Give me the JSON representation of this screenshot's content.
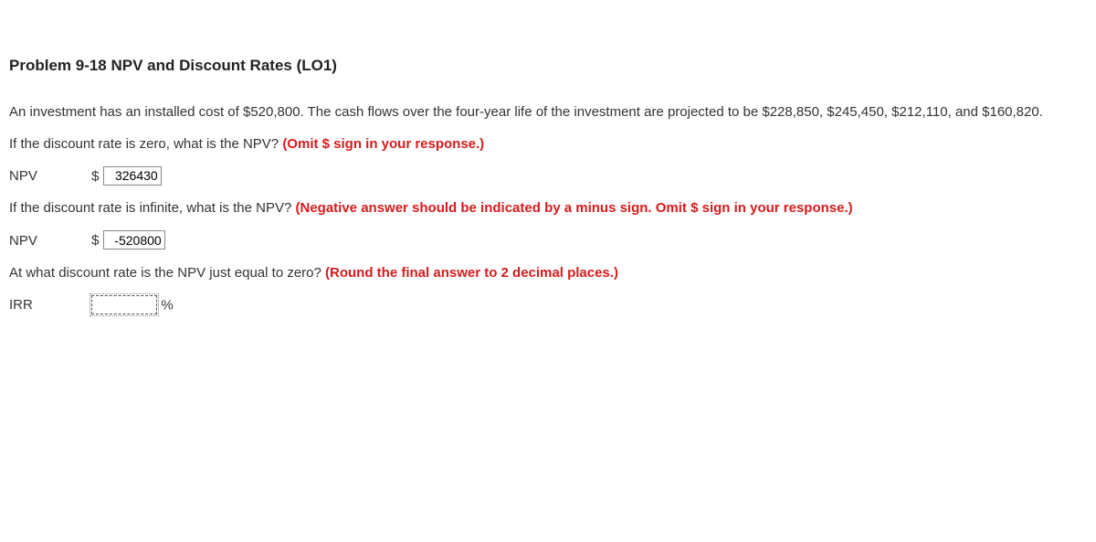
{
  "title": "Problem 9-18 NPV and Discount Rates (LO1)",
  "intro": "An investment has an installed cost of $520,800. The cash flows over the four-year life of the investment are projected to be $228,850, $245,450, $212,110, and $160,820.",
  "q1": {
    "text": "If the discount rate is zero, what is the NPV? ",
    "instruction": "(Omit $ sign in your response.)",
    "label": "NPV",
    "prefix": "$",
    "value": "326430"
  },
  "q2": {
    "text": "If the discount rate is infinite, what is the NPV? ",
    "instruction": "(Negative answer should be indicated by a minus sign. Omit $ sign in your response.)",
    "label": "NPV",
    "prefix": "$",
    "value": "-520800"
  },
  "q3": {
    "text": "At what discount rate is the NPV just equal to zero? ",
    "instruction": "(Round the final answer to 2 decimal places.)",
    "label": "IRR",
    "suffix": "%",
    "value": ""
  }
}
